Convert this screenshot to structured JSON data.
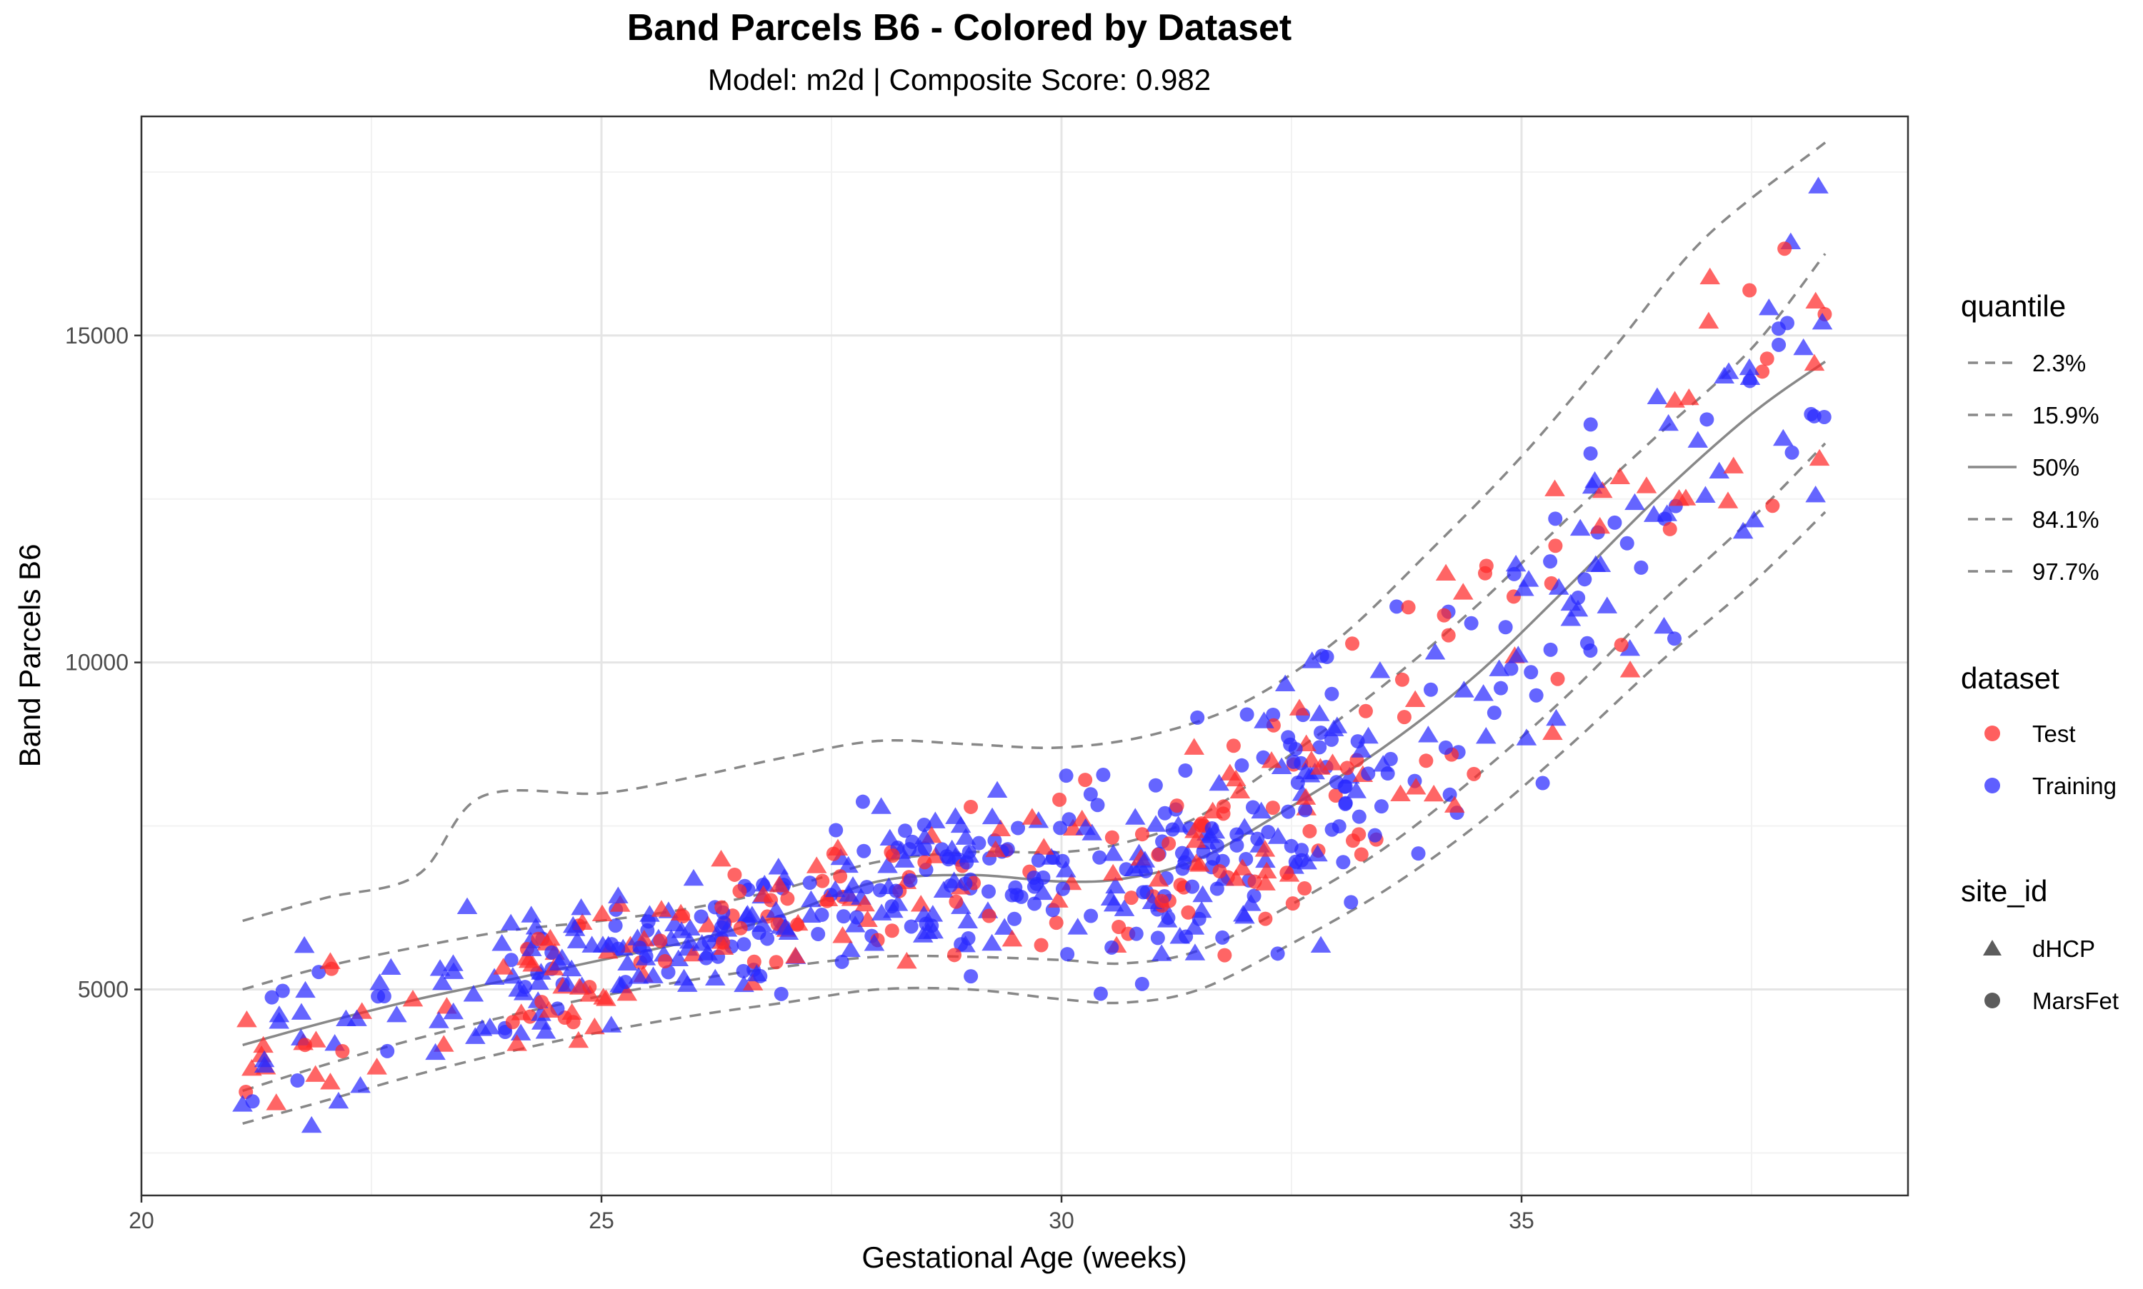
{
  "chart_data": {
    "type": "scatter",
    "title": "Band Parcels B6 - Colored by Dataset",
    "subtitle": "Model: m2d | Composite Score: 0.982",
    "xlabel": "Gestational Age (weeks)",
    "ylabel": "Band Parcels B6",
    "xlim": [
      20,
      39.2
    ],
    "ylim": [
      1850,
      18350
    ],
    "x_ticks": [
      20,
      25,
      30,
      35
    ],
    "y_ticks": [
      5000,
      10000,
      15000
    ],
    "grid": true,
    "colors": {
      "Test": "#FF2A2A",
      "Training": "#2A2AFF",
      "quantile_line": "#888888"
    },
    "legends": {
      "quantile": {
        "title": "quantile",
        "entries": [
          {
            "label": "2.3%",
            "linetype": "dashed"
          },
          {
            "label": "15.9%",
            "linetype": "dashed"
          },
          {
            "label": "50%",
            "linetype": "solid"
          },
          {
            "label": "84.1%",
            "linetype": "dashed"
          },
          {
            "label": "97.7%",
            "linetype": "dashed"
          }
        ]
      },
      "dataset": {
        "title": "dataset",
        "entries": [
          {
            "label": "Test",
            "color": "#FF2A2A"
          },
          {
            "label": "Training",
            "color": "#2A2AFF"
          }
        ]
      },
      "site_id": {
        "title": "site_id",
        "entries": [
          {
            "label": "dHCP",
            "shape": "triangle"
          },
          {
            "label": "MarsFet",
            "shape": "circle"
          }
        ]
      }
    },
    "legend_position": "right",
    "quantile_curves": [
      {
        "name": "2.3%",
        "linetype": "dashed",
        "points": [
          [
            21.1,
            2950
          ],
          [
            22,
            3300
          ],
          [
            23,
            3700
          ],
          [
            24,
            4050
          ],
          [
            25,
            4350
          ],
          [
            26,
            4600
          ],
          [
            27,
            4800
          ],
          [
            28,
            5000
          ],
          [
            29,
            5000
          ],
          [
            30,
            4850
          ],
          [
            30.7,
            4800
          ],
          [
            31.5,
            5000
          ],
          [
            32.5,
            5700
          ],
          [
            33.5,
            6500
          ],
          [
            34.5,
            7500
          ],
          [
            35.5,
            8700
          ],
          [
            36.5,
            10000
          ],
          [
            37.5,
            11200
          ],
          [
            38.3,
            12300
          ]
        ]
      },
      {
        "name": "15.9%",
        "linetype": "dashed",
        "points": [
          [
            21.1,
            3450
          ],
          [
            22,
            3850
          ],
          [
            23,
            4250
          ],
          [
            24,
            4600
          ],
          [
            25,
            4900
          ],
          [
            26,
            5150
          ],
          [
            27,
            5350
          ],
          [
            28,
            5500
          ],
          [
            29,
            5500
          ],
          [
            30,
            5450
          ],
          [
            30.7,
            5400
          ],
          [
            31.5,
            5600
          ],
          [
            32.5,
            6300
          ],
          [
            33.5,
            7150
          ],
          [
            34.5,
            8250
          ],
          [
            35.5,
            9500
          ],
          [
            36.5,
            10900
          ],
          [
            37.5,
            12200
          ],
          [
            38.3,
            13350
          ]
        ]
      },
      {
        "name": "50%",
        "linetype": "solid",
        "points": [
          [
            21.1,
            4150
          ],
          [
            22,
            4500
          ],
          [
            23,
            4850
          ],
          [
            24,
            5150
          ],
          [
            25,
            5450
          ],
          [
            26,
            5750
          ],
          [
            27,
            6150
          ],
          [
            28,
            6650
          ],
          [
            29,
            6750
          ],
          [
            30,
            6650
          ],
          [
            30.7,
            6700
          ],
          [
            31.5,
            7000
          ],
          [
            32.5,
            7800
          ],
          [
            33.5,
            8700
          ],
          [
            34.5,
            9800
          ],
          [
            35.5,
            11150
          ],
          [
            36.5,
            12550
          ],
          [
            37.5,
            13800
          ],
          [
            38.3,
            14600
          ]
        ]
      },
      {
        "name": "84.1%",
        "linetype": "dashed",
        "points": [
          [
            21.1,
            5000
          ],
          [
            22,
            5350
          ],
          [
            23,
            5650
          ],
          [
            24,
            5900
          ],
          [
            25,
            6050
          ],
          [
            26,
            6250
          ],
          [
            27,
            6550
          ],
          [
            28,
            6950
          ],
          [
            29,
            7100
          ],
          [
            30,
            7100
          ],
          [
            30.7,
            7250
          ],
          [
            31.5,
            7650
          ],
          [
            32.5,
            8600
          ],
          [
            33.5,
            9650
          ],
          [
            34.5,
            10850
          ],
          [
            35.5,
            12200
          ],
          [
            36.5,
            13500
          ],
          [
            37.5,
            14800
          ],
          [
            38.3,
            16250
          ]
        ]
      },
      {
        "name": "97.7%",
        "linetype": "dashed",
        "points": [
          [
            21.1,
            6050
          ],
          [
            22,
            6400
          ],
          [
            23,
            6750
          ],
          [
            23.7,
            7950
          ],
          [
            25,
            8000
          ],
          [
            26,
            8250
          ],
          [
            27,
            8550
          ],
          [
            28,
            8800
          ],
          [
            29,
            8750
          ],
          [
            30,
            8700
          ],
          [
            31,
            8900
          ],
          [
            32,
            9400
          ],
          [
            33,
            10350
          ],
          [
            34,
            11700
          ],
          [
            35,
            13150
          ],
          [
            36,
            14800
          ],
          [
            37,
            16500
          ],
          [
            38.3,
            17950
          ]
        ]
      }
    ]
  }
}
